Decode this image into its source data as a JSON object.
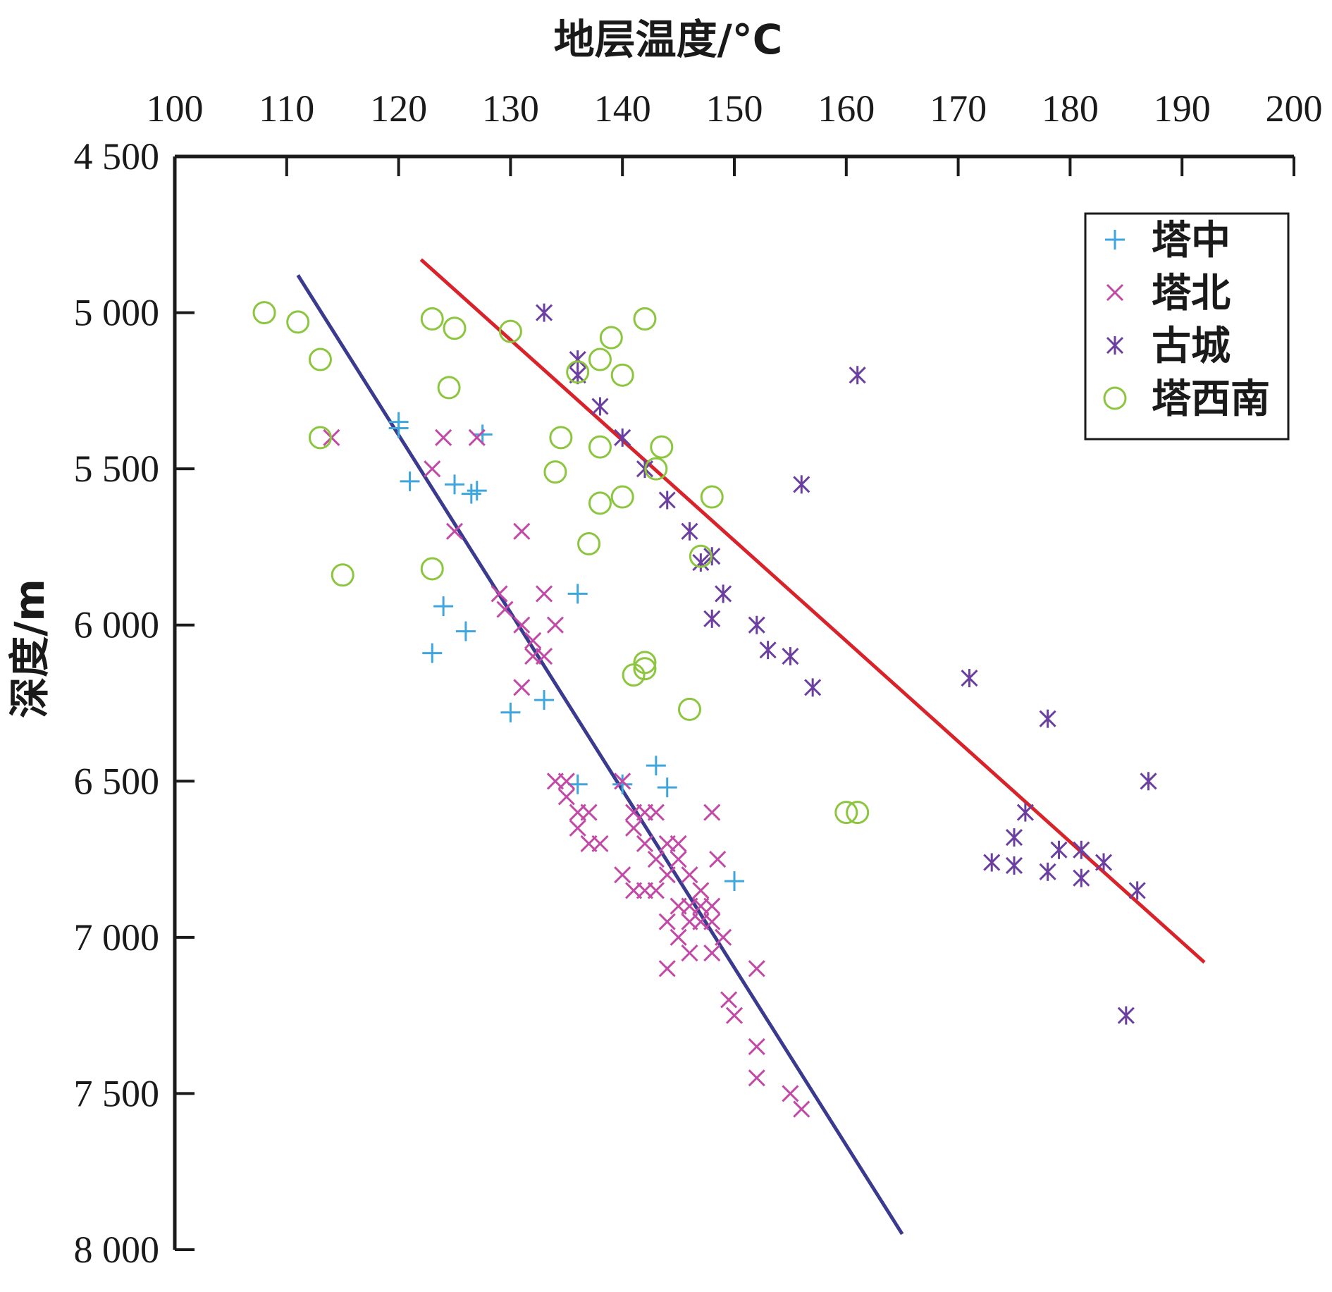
{
  "chart_data": {
    "type": "scatter",
    "xlabel": "地层温度/°C",
    "ylabel": "深度/m",
    "xlim": [
      100,
      200
    ],
    "ylim": [
      4500,
      8000
    ],
    "y_inverted": true,
    "x_axis_position": "top",
    "grid": false,
    "legend_position": "top-right",
    "x_ticks": [
      100,
      110,
      120,
      130,
      140,
      150,
      160,
      170,
      180,
      190,
      200
    ],
    "x_tick_labels": [
      "100",
      "110",
      "120",
      "130",
      "140",
      "150",
      "160",
      "170",
      "180",
      "190",
      "200"
    ],
    "y_ticks": [
      4500,
      5000,
      5500,
      6000,
      6500,
      7000,
      7500,
      8000
    ],
    "y_tick_labels": [
      "4 500",
      "5 000",
      "5 500",
      "6 000",
      "6 500",
      "7 000",
      "7 500",
      "8 000"
    ],
    "series": [
      {
        "name": "塔中",
        "marker": "plus",
        "color": "#3ea6dc",
        "points": [
          [
            120,
            5350
          ],
          [
            120,
            5370
          ],
          [
            121,
            5540
          ],
          [
            125,
            5550
          ],
          [
            127,
            5570
          ],
          [
            126.5,
            5580
          ],
          [
            127.5,
            5390
          ],
          [
            124,
            5940
          ],
          [
            126,
            6020
          ],
          [
            123,
            6090
          ],
          [
            130,
            6280
          ],
          [
            133,
            6240
          ],
          [
            136,
            5900
          ],
          [
            136,
            6510
          ],
          [
            140,
            6510
          ],
          [
            143,
            6450
          ],
          [
            144,
            6520
          ],
          [
            150,
            6820
          ]
        ]
      },
      {
        "name": "塔北",
        "marker": "x",
        "color": "#c24aa6",
        "points": [
          [
            114,
            5400
          ],
          [
            124,
            5400
          ],
          [
            127,
            5400
          ],
          [
            123,
            5500
          ],
          [
            125,
            5700
          ],
          [
            131,
            5700
          ],
          [
            129,
            5900
          ],
          [
            129.5,
            5950
          ],
          [
            131,
            6000
          ],
          [
            132,
            6050
          ],
          [
            133,
            6100
          ],
          [
            131,
            6200
          ],
          [
            133,
            5900
          ],
          [
            134,
            6000
          ],
          [
            132,
            6100
          ],
          [
            134,
            6500
          ],
          [
            135,
            6500
          ],
          [
            135,
            6550
          ],
          [
            136,
            6600
          ],
          [
            137,
            6600
          ],
          [
            136,
            6650
          ],
          [
            137,
            6700
          ],
          [
            138,
            6700
          ],
          [
            140,
            6500
          ],
          [
            141,
            6600
          ],
          [
            142,
            6600
          ],
          [
            143,
            6600
          ],
          [
            141,
            6650
          ],
          [
            142,
            6700
          ],
          [
            144,
            6700
          ],
          [
            145,
            6700
          ],
          [
            143,
            6750
          ],
          [
            145,
            6750
          ],
          [
            146,
            6800
          ],
          [
            144,
            6800
          ],
          [
            140,
            6800
          ],
          [
            141,
            6850
          ],
          [
            142,
            6850
          ],
          [
            143,
            6850
          ],
          [
            145,
            6900
          ],
          [
            146,
            6900
          ],
          [
            147,
            6900
          ],
          [
            148,
            6900
          ],
          [
            144,
            6950
          ],
          [
            146,
            6950
          ],
          [
            147,
            6950
          ],
          [
            148,
            6950
          ],
          [
            145,
            7000
          ],
          [
            149,
            7000
          ],
          [
            147,
            6850
          ],
          [
            146,
            7050
          ],
          [
            148,
            7050
          ],
          [
            144,
            7100
          ],
          [
            148,
            6600
          ],
          [
            148.5,
            6750
          ],
          [
            152,
            7100
          ],
          [
            149.5,
            7200
          ],
          [
            150,
            7250
          ],
          [
            152,
            7350
          ],
          [
            152,
            7450
          ],
          [
            155,
            7500
          ],
          [
            156,
            7550
          ]
        ]
      },
      {
        "name": "古城",
        "marker": "star",
        "color": "#6b3fa0",
        "points": [
          [
            133,
            5000
          ],
          [
            136,
            5150
          ],
          [
            136,
            5200
          ],
          [
            138,
            5300
          ],
          [
            140,
            5400
          ],
          [
            142,
            5500
          ],
          [
            144,
            5600
          ],
          [
            146,
            5700
          ],
          [
            147,
            5800
          ],
          [
            148,
            5780
          ],
          [
            149,
            5900
          ],
          [
            148,
            5980
          ],
          [
            152,
            6000
          ],
          [
            153,
            6080
          ],
          [
            155,
            6100
          ],
          [
            157,
            6200
          ],
          [
            156,
            5550
          ],
          [
            161,
            5200
          ],
          [
            171,
            6170
          ],
          [
            178,
            6300
          ],
          [
            176,
            6600
          ],
          [
            175,
            6680
          ],
          [
            173,
            6760
          ],
          [
            175,
            6770
          ],
          [
            178,
            6790
          ],
          [
            179,
            6720
          ],
          [
            181,
            6720
          ],
          [
            181,
            6810
          ],
          [
            183,
            6760
          ],
          [
            186,
            6850
          ],
          [
            187,
            6500
          ],
          [
            185,
            7250
          ]
        ]
      },
      {
        "name": "塔西南",
        "marker": "circle",
        "color": "#8cc63f",
        "points": [
          [
            108,
            5000
          ],
          [
            111,
            5030
          ],
          [
            113,
            5150
          ],
          [
            113,
            5400
          ],
          [
            115,
            5840
          ],
          [
            123,
            5020
          ],
          [
            125,
            5050
          ],
          [
            124.5,
            5240
          ],
          [
            130,
            5060
          ],
          [
            123,
            5820
          ],
          [
            134.5,
            5400
          ],
          [
            134,
            5510
          ],
          [
            136,
            5190
          ],
          [
            138,
            5150
          ],
          [
            139,
            5080
          ],
          [
            140,
            5200
          ],
          [
            142,
            5020
          ],
          [
            138,
            5430
          ],
          [
            143.5,
            5430
          ],
          [
            143,
            5500
          ],
          [
            138,
            5610
          ],
          [
            140,
            5590
          ],
          [
            148,
            5590
          ],
          [
            137,
            5740
          ],
          [
            147,
            5780
          ],
          [
            142,
            6120
          ],
          [
            142,
            6140
          ],
          [
            141,
            6160
          ],
          [
            146,
            6270
          ],
          [
            160,
            6600
          ],
          [
            161,
            6600
          ]
        ]
      }
    ],
    "trend_lines": [
      {
        "color": "#d9232a",
        "points": [
          [
            122,
            4830
          ],
          [
            192,
            7080
          ]
        ]
      },
      {
        "color": "#3a3a8e",
        "points": [
          [
            111,
            4880
          ],
          [
            165,
            7950
          ]
        ]
      }
    ]
  }
}
